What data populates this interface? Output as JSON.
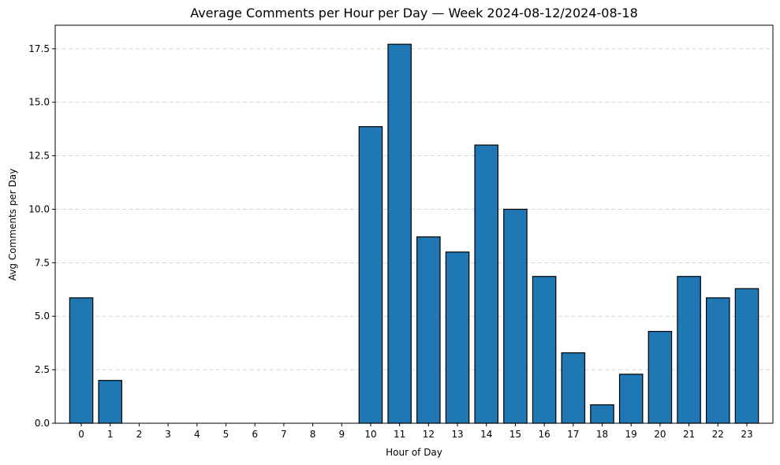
{
  "chart_data": {
    "type": "bar",
    "title": "Average Comments per Hour per Day — Week 2024-08-12/2024-08-18",
    "xlabel": "Hour of Day",
    "ylabel": "Avg Comments per Day",
    "categories": [
      "0",
      "1",
      "2",
      "3",
      "4",
      "5",
      "6",
      "7",
      "8",
      "9",
      "10",
      "11",
      "12",
      "13",
      "14",
      "15",
      "16",
      "17",
      "18",
      "19",
      "20",
      "21",
      "22",
      "23"
    ],
    "values": [
      5.86,
      2.0,
      0,
      0,
      0,
      0,
      0,
      0,
      0,
      0,
      13.86,
      17.71,
      8.71,
      8.0,
      13.0,
      10.0,
      6.86,
      3.29,
      0.86,
      2.29,
      4.29,
      6.86,
      5.86,
      6.29
    ],
    "ylim": [
      0,
      18.6
    ],
    "yticks": [
      0.0,
      2.5,
      5.0,
      7.5,
      10.0,
      12.5,
      15.0,
      17.5
    ],
    "ytick_labels": [
      "0.0",
      "2.5",
      "5.0",
      "7.5",
      "10.0",
      "12.5",
      "15.0",
      "17.5"
    ],
    "grid": "y-dashed",
    "bar_color": "#1f77b4",
    "edge_color": "#000000"
  }
}
